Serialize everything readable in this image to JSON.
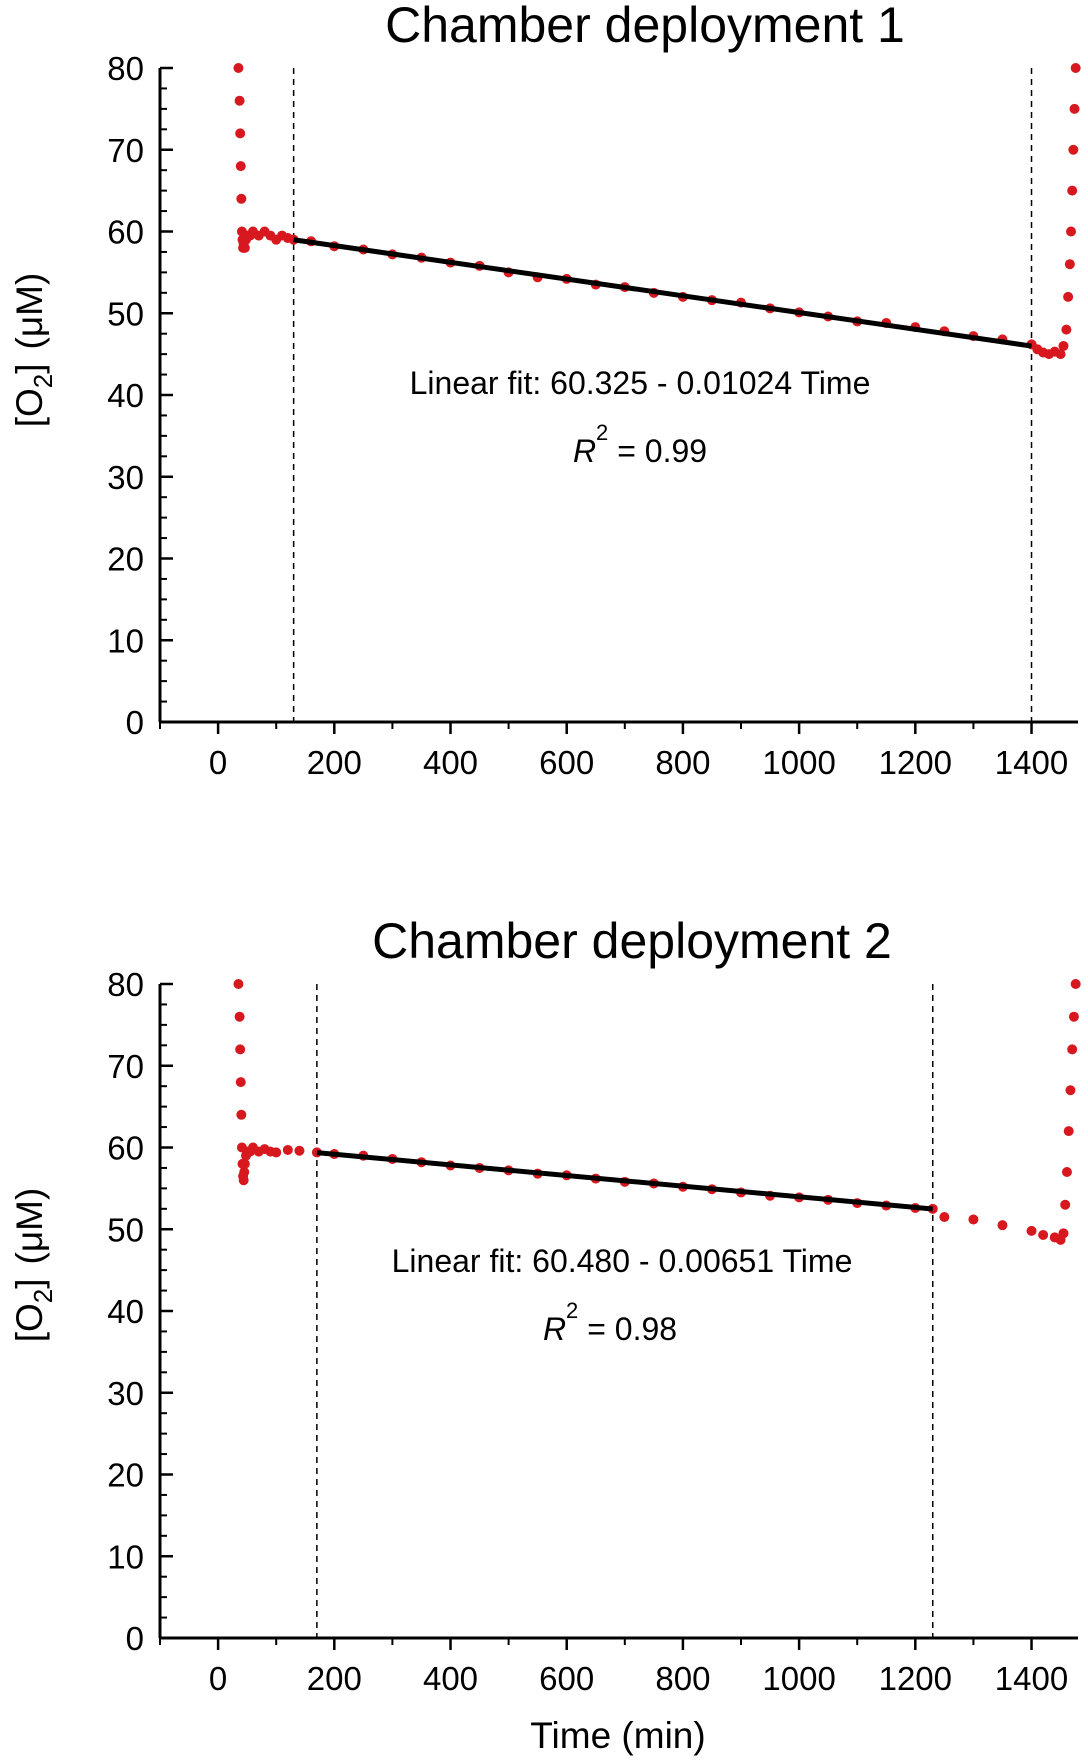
{
  "chart_data": [
    {
      "type": "scatter",
      "title": "Chamber deployment 1",
      "xlabel": "",
      "ylabel": {
        "bracket_open": "[O",
        "subscript": "2",
        "bracket_close": "]",
        "unit": "(μM)"
      },
      "xlim": [
        -100,
        1480
      ],
      "ylim": [
        0,
        80
      ],
      "xticks": [
        "0",
        "200",
        "400",
        "600",
        "800",
        "1000",
        "1200",
        "1400"
      ],
      "yticks": [
        "0",
        "10",
        "20",
        "30",
        "40",
        "50",
        "60",
        "70",
        "80"
      ],
      "marker_color": "#d7191f",
      "fit_color": "#000000",
      "series": [
        {
          "x": [
            35,
            37,
            38,
            39,
            40,
            41,
            42,
            43,
            44,
            45,
            46,
            48,
            50,
            55,
            60,
            70,
            80,
            90,
            100,
            110,
            120,
            130,
            160,
            200,
            250,
            300,
            350,
            400,
            450,
            500,
            550,
            600,
            650,
            700,
            750,
            800,
            850,
            900,
            950,
            1000,
            1050,
            1100,
            1150,
            1200,
            1250,
            1300,
            1350,
            1400,
            1410,
            1420,
            1430,
            1440,
            1450,
            1455,
            1460,
            1463,
            1466,
            1468,
            1470,
            1472,
            1474,
            1476
          ],
          "values": [
            80,
            76,
            72,
            68,
            64,
            60,
            59,
            58,
            58.5,
            59,
            58,
            59,
            59.5,
            59.5,
            60,
            59.5,
            60,
            59.5,
            59,
            59.5,
            59.2,
            59.0,
            58.8,
            58.2,
            57.8,
            57.2,
            56.8,
            56.2,
            55.8,
            55.0,
            54.4,
            54.2,
            53.5,
            53.2,
            52.5,
            52.0,
            51.6,
            51.3,
            50.6,
            50.1,
            49.6,
            49.0,
            48.8,
            48.3,
            47.8,
            47.2,
            46.8,
            46.2,
            45.6,
            45.2,
            45.0,
            45.3,
            45.0,
            46.0,
            48.0,
            52.0,
            56.0,
            60.0,
            65.0,
            70.0,
            75.0,
            80.0
          ]
        }
      ],
      "fit": {
        "intercept": 60.325,
        "slope": -0.01024,
        "x_range": [
          130,
          1400
        ]
      },
      "markers_x": [
        130,
        1400
      ],
      "annotation": {
        "fit_text": "Linear fit:  60.325 - 0.01024 Time",
        "r_symbol": "R",
        "r_power": "2",
        "r_value": " = 0.99"
      }
    },
    {
      "type": "scatter",
      "title": "Chamber deployment 2",
      "xlabel": "Time  (min)",
      "ylabel": {
        "bracket_open": "[O",
        "subscript": "2",
        "bracket_close": "]",
        "unit": "(μM)"
      },
      "xlim": [
        -100,
        1480
      ],
      "ylim": [
        0,
        80
      ],
      "xticks": [
        "0",
        "200",
        "400",
        "600",
        "800",
        "1000",
        "1200",
        "1400"
      ],
      "yticks": [
        "0",
        "10",
        "20",
        "30",
        "40",
        "50",
        "60",
        "70",
        "80"
      ],
      "marker_color": "#d7191f",
      "fit_color": "#000000",
      "series": [
        {
          "x": [
            35,
            37,
            38,
            39,
            40,
            41,
            42,
            43,
            44,
            45,
            46,
            48,
            50,
            55,
            60,
            70,
            80,
            90,
            100,
            120,
            140,
            170,
            200,
            250,
            300,
            350,
            400,
            450,
            500,
            550,
            600,
            650,
            700,
            750,
            800,
            850,
            900,
            950,
            1000,
            1050,
            1100,
            1150,
            1200,
            1230,
            1250,
            1300,
            1350,
            1400,
            1420,
            1440,
            1450,
            1455,
            1458,
            1461,
            1464,
            1467,
            1470,
            1473,
            1476
          ],
          "values": [
            80,
            76,
            72,
            68,
            64,
            60,
            58,
            56.5,
            56,
            57,
            58,
            59,
            59.5,
            59.5,
            60,
            59.5,
            59.8,
            59.5,
            59.4,
            59.7,
            59.6,
            59.4,
            59.2,
            59.0,
            58.6,
            58.2,
            57.8,
            57.5,
            57.2,
            56.8,
            56.6,
            56.2,
            55.8,
            55.6,
            55.2,
            54.9,
            54.5,
            54.1,
            53.9,
            53.6,
            53.2,
            52.9,
            52.6,
            52.5,
            51.5,
            51.2,
            50.5,
            49.8,
            49.3,
            49.0,
            48.7,
            49.5,
            53.0,
            57.0,
            62.0,
            67.0,
            72.0,
            76.0,
            80.0
          ]
        }
      ],
      "fit": {
        "intercept": 60.48,
        "slope": -0.00651,
        "x_range": [
          170,
          1230
        ]
      },
      "markers_x": [
        170,
        1230
      ],
      "annotation": {
        "fit_text": "Linear fit:  60.480 - 0.00651 Time",
        "r_symbol": "R",
        "r_power": "2",
        "r_value": " = 0.98"
      }
    }
  ]
}
